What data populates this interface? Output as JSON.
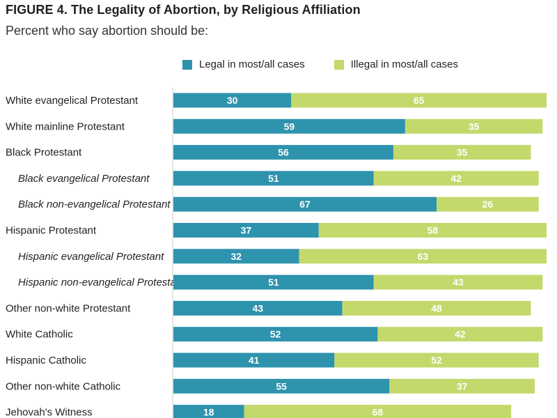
{
  "figure": {
    "title": "FIGURE 4.  The Legality of Abortion, by Religious Affiliation",
    "subtitle": "Percent who say abortion should be:"
  },
  "colors": {
    "legal": "#2e93ad",
    "illegal": "#c3d96c",
    "axis": "#cfcfcf"
  },
  "chart_data": {
    "type": "bar",
    "orientation": "horizontal",
    "stacked": true,
    "xlim": [
      0,
      100
    ],
    "grid": false,
    "legend_position": "top",
    "categories": [
      "White evangelical Protestant",
      "White mainline Protestant",
      "Black Protestant",
      "Black evangelical Protestant",
      "Black non-evangelical Protestant",
      "Hispanic Protestant",
      "Hispanic evangelical Protestant",
      "Hispanic non-evangelical Protestant",
      "Other non-white Protestant",
      "White Catholic",
      "Hispanic Catholic",
      "Other non-white Catholic",
      "Jehovah's Witness"
    ],
    "subcategory": [
      false,
      false,
      false,
      true,
      true,
      false,
      true,
      true,
      false,
      false,
      false,
      false,
      false
    ],
    "series": [
      {
        "name": "Legal in most/all cases",
        "values": [
          30,
          59,
          56,
          51,
          67,
          37,
          32,
          51,
          43,
          52,
          41,
          55,
          18
        ]
      },
      {
        "name": "Illegal in most/all cases",
        "values": [
          65,
          35,
          35,
          42,
          26,
          58,
          63,
          43,
          48,
          42,
          52,
          37,
          68
        ]
      }
    ]
  }
}
